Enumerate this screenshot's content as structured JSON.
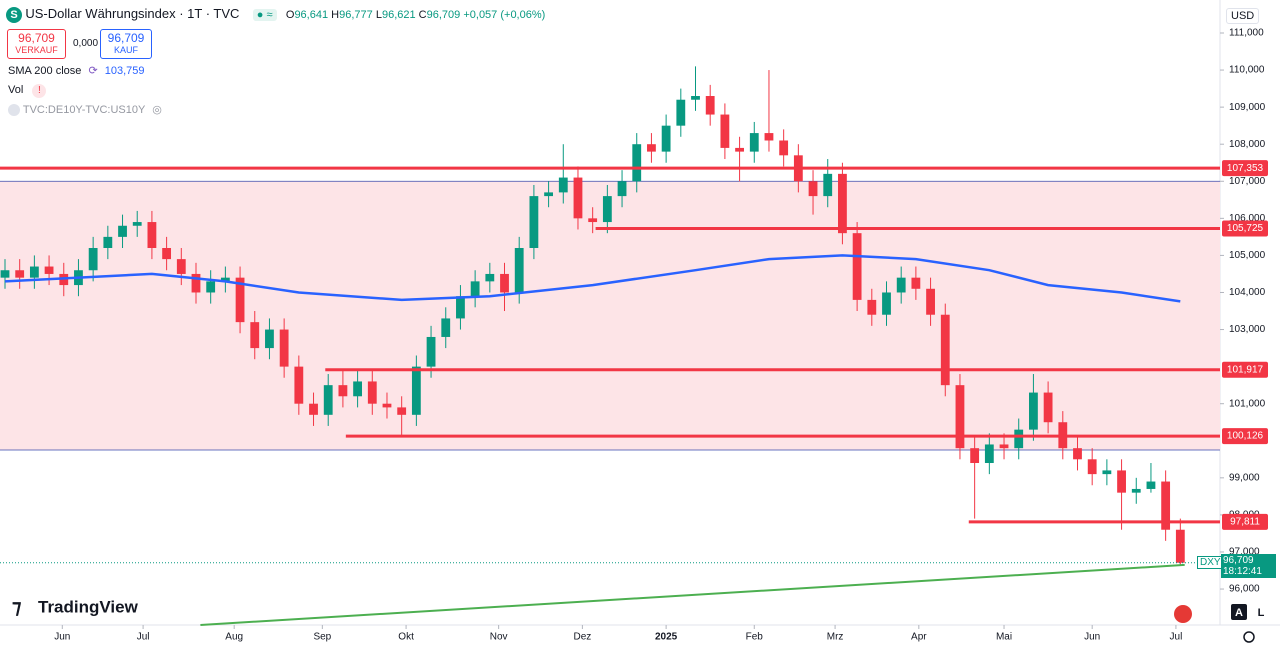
{
  "header": {
    "symbol_icon": "S",
    "title": "US-Dollar Währungsindex · 1T · TVC",
    "ohlc": [
      {
        "key": "O",
        "value": "96,641"
      },
      {
        "key": "H",
        "value": "96,777"
      },
      {
        "key": "L",
        "value": "96,621"
      },
      {
        "key": "C",
        "value": "96,709"
      }
    ],
    "change": "+0,057 (+0,06%)"
  },
  "trade": {
    "sell_price": "96,709",
    "sell_label": "VERKAUF",
    "spread": "0,000",
    "buy_price": "96,709",
    "buy_label": "KAUF"
  },
  "indicators": [
    "Vol",
    "TVC:DE10Y-TVC:US10Y"
  ],
  "currency": "USD",
  "brand": "TradingView",
  "price_tag": {
    "symbol": "DXY",
    "price": "96,709",
    "countdown": "18:12:41"
  },
  "chart_data": {
    "type": "candlestick",
    "categories": [
      null,
      null,
      null,
      null,
      null,
      null,
      null,
      null,
      null,
      null,
      null,
      null,
      null,
      null,
      null,
      null,
      null,
      null,
      null,
      null,
      null,
      null,
      null,
      null,
      null,
      null,
      null,
      null,
      null,
      null,
      null,
      null,
      null,
      null,
      null,
      null,
      null,
      null,
      null,
      null,
      null,
      null,
      null,
      null,
      null,
      null,
      null,
      null,
      null,
      null,
      null,
      null,
      null,
      null,
      null,
      null,
      null,
      null,
      null,
      null,
      null,
      null,
      null,
      null,
      null,
      null,
      null,
      null,
      null,
      null,
      null,
      null,
      null,
      null,
      null,
      null,
      null,
      null,
      null,
      null,
      null
    ],
    "open": [
      104.4,
      104.6,
      104.4,
      104.7,
      104.5,
      104.2,
      104.6,
      105.2,
      105.5,
      105.8,
      105.9,
      105.2,
      104.9,
      104.5,
      104.0,
      104.3,
      104.4,
      103.2,
      102.5,
      103.0,
      102.0,
      101.0,
      100.7,
      101.5,
      101.2,
      101.6,
      101.0,
      100.9,
      100.7,
      102.0,
      102.8,
      103.3,
      103.9,
      104.3,
      104.5,
      104.0,
      105.2,
      106.6,
      106.7,
      107.1,
      106.0,
      105.9,
      106.6,
      107.0,
      108.0,
      107.8,
      108.5,
      109.2,
      109.3,
      108.8,
      107.9,
      107.8,
      108.3,
      108.1,
      107.7,
      107.0,
      106.6,
      107.2,
      105.6,
      103.8,
      103.4,
      104.0,
      104.4,
      104.1,
      103.4,
      101.5,
      99.8,
      99.4,
      99.9,
      99.8,
      100.3,
      101.3,
      100.5,
      99.8,
      99.5,
      99.1,
      99.2,
      98.6,
      98.7,
      98.9,
      97.6
    ],
    "high": [
      104.9,
      104.9,
      105.0,
      105.0,
      104.8,
      104.9,
      105.5,
      105.8,
      106.1,
      106.2,
      106.2,
      105.5,
      105.2,
      104.8,
      104.6,
      104.7,
      104.7,
      103.5,
      103.3,
      103.3,
      102.3,
      101.3,
      101.8,
      101.9,
      101.9,
      101.9,
      101.3,
      101.2,
      102.3,
      103.1,
      103.6,
      104.2,
      104.6,
      104.8,
      104.8,
      105.5,
      106.9,
      107.0,
      108.0,
      107.4,
      106.3,
      106.9,
      107.3,
      108.3,
      108.3,
      108.8,
      109.5,
      110.1,
      109.6,
      109.1,
      108.2,
      108.6,
      110.0,
      108.4,
      108.0,
      107.3,
      107.6,
      107.5,
      105.9,
      104.1,
      104.3,
      104.7,
      104.7,
      104.4,
      103.7,
      101.8,
      100.1,
      100.2,
      100.2,
      100.6,
      101.8,
      101.6,
      100.8,
      100.1,
      99.8,
      99.5,
      99.5,
      99.0,
      99.4,
      99.2,
      97.9
    ],
    "low": [
      104.1,
      104.1,
      104.1,
      104.2,
      103.9,
      103.9,
      104.3,
      104.9,
      105.2,
      105.5,
      104.9,
      104.6,
      104.2,
      103.7,
      103.7,
      104.0,
      102.9,
      102.2,
      102.2,
      101.7,
      100.7,
      100.4,
      100.4,
      100.9,
      100.9,
      100.7,
      100.6,
      100.1,
      100.4,
      101.7,
      102.5,
      103.0,
      103.6,
      104.0,
      103.5,
      103.7,
      104.9,
      106.3,
      106.4,
      105.7,
      105.6,
      105.6,
      106.3,
      106.7,
      107.5,
      107.5,
      108.2,
      108.9,
      108.5,
      107.6,
      107.0,
      107.5,
      107.8,
      107.4,
      106.7,
      106.1,
      106.3,
      105.3,
      103.5,
      103.1,
      103.1,
      103.7,
      103.8,
      103.1,
      101.2,
      99.5,
      97.9,
      99.1,
      99.5,
      99.5,
      100.0,
      100.2,
      99.5,
      99.2,
      98.8,
      98.8,
      97.6,
      98.3,
      98.6,
      97.3,
      96.621
    ],
    "close": [
      104.6,
      104.4,
      104.7,
      104.5,
      104.2,
      104.6,
      105.2,
      105.5,
      105.8,
      105.9,
      105.2,
      104.9,
      104.5,
      104.0,
      104.3,
      104.4,
      103.2,
      102.5,
      103.0,
      102.0,
      101.0,
      100.7,
      101.5,
      101.2,
      101.6,
      101.0,
      100.9,
      100.7,
      102.0,
      102.8,
      103.3,
      103.9,
      104.3,
      104.5,
      104.0,
      105.2,
      106.6,
      106.7,
      107.1,
      106.0,
      105.9,
      106.6,
      107.0,
      108.0,
      107.8,
      108.5,
      109.2,
      109.3,
      108.8,
      107.9,
      107.8,
      108.3,
      108.1,
      107.7,
      107.0,
      106.6,
      107.2,
      105.6,
      103.8,
      103.4,
      104.0,
      104.4,
      104.1,
      103.4,
      101.5,
      99.8,
      99.4,
      99.9,
      99.8,
      100.3,
      101.3,
      100.5,
      99.8,
      99.5,
      99.1,
      99.2,
      98.6,
      98.7,
      98.9,
      97.6,
      96.709
    ],
    "up_color": "#089981",
    "down_color": "#f23645",
    "sma": {
      "name": "SMA 200 close",
      "value_label": "103,759",
      "color": "#2962ff",
      "x": [
        0,
        10,
        15,
        20,
        27,
        33,
        40,
        47,
        52,
        57,
        62,
        67,
        71,
        76,
        80
      ],
      "values": [
        104.3,
        104.5,
        104.3,
        104.0,
        103.8,
        103.9,
        104.2,
        104.6,
        104.9,
        105.0,
        104.9,
        104.6,
        104.2,
        104.0,
        103.759
      ]
    },
    "trendline": {
      "color": "#4caf50",
      "x": [
        13.3,
        80.3
      ],
      "values": [
        95.03,
        96.65
      ]
    },
    "levels": [
      {
        "value": 107.353,
        "label": "107,353",
        "from": -0.34
      },
      {
        "value": 105.725,
        "label": "105,725",
        "from": 40.2
      },
      {
        "value": 101.917,
        "label": "101,917",
        "from": 21.8
      },
      {
        "value": 100.126,
        "label": "100,126",
        "from": 23.2
      },
      {
        "value": 97.811,
        "label": "97,811",
        "from": 65.6
      }
    ],
    "level_color": "#f23645",
    "zone": {
      "values": [
        99.75,
        107.0
      ],
      "color": "#fde4e7",
      "edge_color": "#3949ab"
    },
    "xlim": [
      -0.34,
      82.7
    ],
    "ylim": [
      95.03,
      111.89
    ],
    "xticks": [
      {
        "value": 3.9,
        "label": "Jun"
      },
      {
        "value": 9.4,
        "label": "Jul"
      },
      {
        "value": 15.6,
        "label": "Aug"
      },
      {
        "value": 21.6,
        "label": "Sep"
      },
      {
        "value": 27.3,
        "label": "Okt"
      },
      {
        "value": 33.6,
        "label": "Nov"
      },
      {
        "value": 39.3,
        "label": "Dez"
      },
      {
        "value": 45.0,
        "label": "2025"
      },
      {
        "value": 51.0,
        "label": "Feb"
      },
      {
        "value": 56.5,
        "label": "Mrz"
      },
      {
        "value": 62.2,
        "label": "Apr"
      },
      {
        "value": 68.0,
        "label": "Mai"
      },
      {
        "value": 74.0,
        "label": "Jun"
      },
      {
        "value": 79.7,
        "label": "Jul"
      }
    ],
    "yticks": [
      {
        "value": 96,
        "label": "96,000"
      },
      {
        "value": 97,
        "label": "97,000"
      },
      {
        "value": 98,
        "label": "98,000"
      },
      {
        "value": 99,
        "label": "99,000"
      },
      {
        "value": 101,
        "label": "101,000"
      },
      {
        "value": 103,
        "label": "103,000"
      },
      {
        "value": 104,
        "label": "104,000"
      },
      {
        "value": 105,
        "label": "105,000"
      },
      {
        "value": 106,
        "label": "106,000"
      },
      {
        "value": 107,
        "label": "107,000"
      },
      {
        "value": 108,
        "label": "108,000"
      },
      {
        "value": 109,
        "label": "109,000"
      },
      {
        "value": 110,
        "label": "110,000"
      },
      {
        "value": 111,
        "label": "111,000"
      }
    ]
  }
}
